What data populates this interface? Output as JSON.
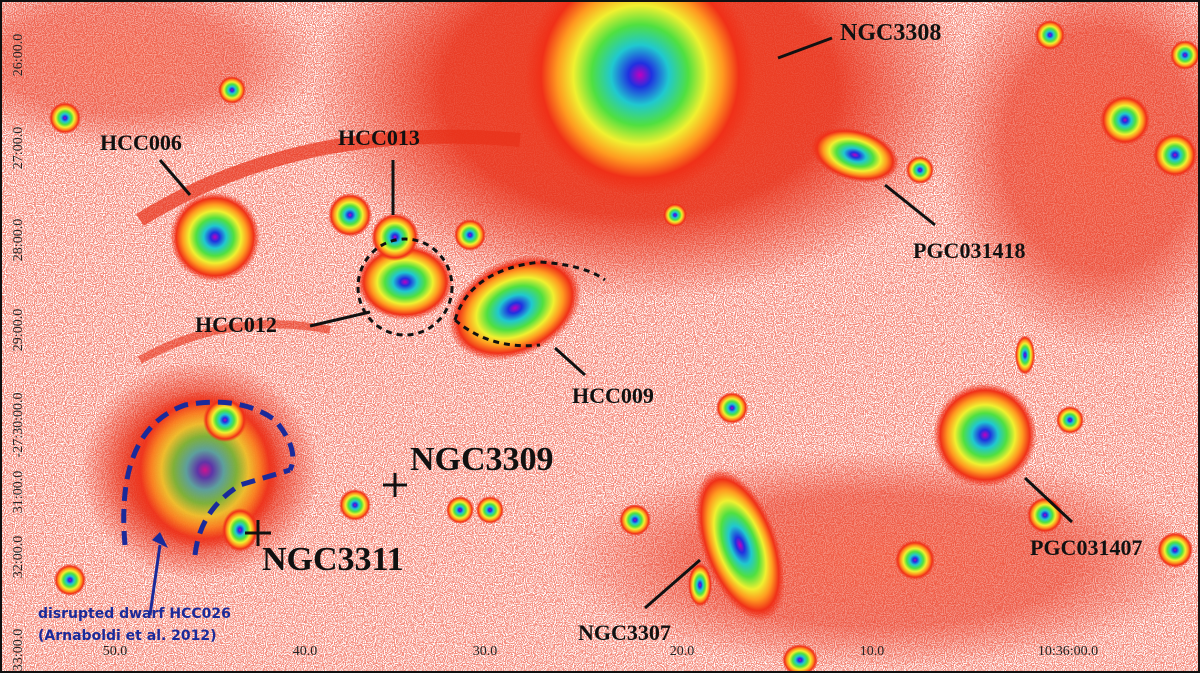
{
  "image": {
    "labels": [
      "NGC3308",
      "HCC006",
      "HCC013",
      "PGC031418",
      "HCC012",
      "HCC009",
      "NGC3309",
      "NGC3311",
      "PGC031407",
      "NGC3307"
    ],
    "annotation": [
      "disrupted dwarf HCC026",
      "(Arnaboldi et al. 2012)"
    ],
    "y_axis_labels": [
      "26:00.0",
      "27:00.0",
      "28:00.0",
      "29:00.0",
      "-27:30:00.0",
      "31:00.0",
      "32:00.0",
      "33:00.0"
    ],
    "x_axis_labels": [
      "50.0",
      "40.0",
      "30.0",
      "20.0",
      "10.0",
      "10:36:00.0"
    ]
  }
}
